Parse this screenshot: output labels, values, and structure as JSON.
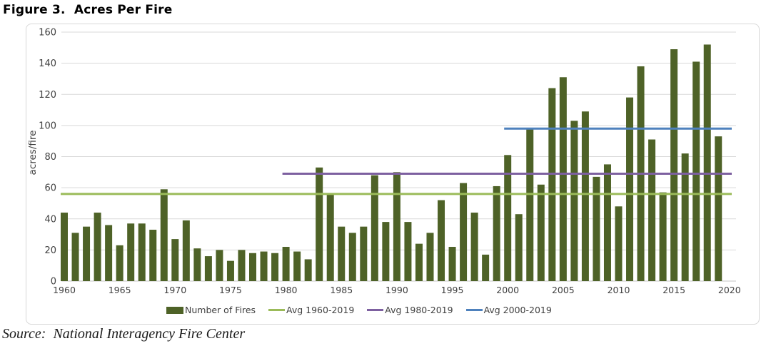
{
  "title": "Figure 3.  Acres Per Fire",
  "source": "Source:  National Interagency Fire Center",
  "colors": {
    "bar": "#4e6227",
    "avg_1960": "#9bbb59",
    "avg_1980": "#7d60a0",
    "avg_2000": "#4e81bd",
    "gridline": "#d9d9d9",
    "zero_line": "#c6c6c6",
    "tick_text": "#404040",
    "frame_border": "#d8d8d8"
  },
  "chart_data": {
    "type": "bar",
    "title": "Figure 3. Acres Per Fire",
    "xlabel": "",
    "ylabel": "acres/fire",
    "ylim": [
      0,
      160
    ],
    "ytick_step": 20,
    "grid": true,
    "legend_position": "bottom",
    "series_label": "Number of Fires",
    "bar_color": "#4e6227",
    "x_start": 1960,
    "x_end": 2019,
    "xticks": [
      1960,
      1965,
      1970,
      1975,
      1980,
      1985,
      1990,
      1995,
      2000,
      2005,
      2010,
      2015,
      2020
    ],
    "years": [
      1960,
      1961,
      1962,
      1963,
      1964,
      1965,
      1966,
      1967,
      1968,
      1969,
      1970,
      1971,
      1972,
      1973,
      1974,
      1975,
      1976,
      1977,
      1978,
      1979,
      1980,
      1981,
      1982,
      1983,
      1984,
      1985,
      1986,
      1987,
      1988,
      1989,
      1990,
      1991,
      1992,
      1993,
      1994,
      1995,
      1996,
      1997,
      1998,
      1999,
      2000,
      2001,
      2002,
      2003,
      2004,
      2005,
      2006,
      2007,
      2008,
      2009,
      2010,
      2011,
      2012,
      2013,
      2014,
      2015,
      2016,
      2017,
      2018,
      2019
    ],
    "values": [
      44,
      31,
      35,
      44,
      36,
      23,
      37,
      37,
      33,
      59,
      27,
      39,
      21,
      16,
      20,
      13,
      20,
      18,
      19,
      18,
      22,
      19,
      14,
      73,
      56,
      35,
      31,
      35,
      68,
      38,
      70,
      38,
      24,
      31,
      52,
      22,
      63,
      44,
      17,
      61,
      81,
      43,
      98,
      62,
      124,
      131,
      103,
      109,
      67,
      75,
      48,
      118,
      138,
      91,
      57,
      149,
      82,
      141,
      152,
      93
    ],
    "avg_lines": [
      {
        "label": "Avg 1960-2019",
        "value": 56,
        "start_year": 1960,
        "color": "#9bbb59"
      },
      {
        "label": "Avg 1980-2019",
        "value": 69,
        "start_year": 1980,
        "color": "#7d60a0"
      },
      {
        "label": "Avg 2000-2019",
        "value": 98,
        "start_year": 2000,
        "color": "#4e81bd"
      }
    ]
  }
}
